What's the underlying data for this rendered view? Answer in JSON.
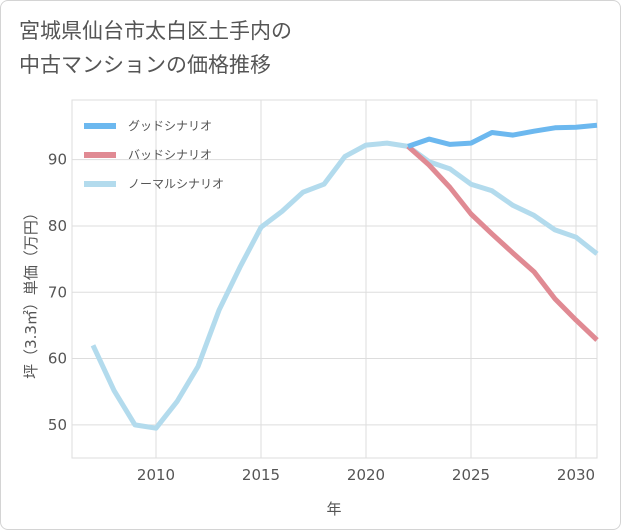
{
  "title_lines": [
    "宮城県仙台市太白区土手内の",
    "中古マンションの価格推移"
  ],
  "chart_data": {
    "type": "line",
    "title": "宮城県仙台市太白区土手内の中古マンションの価格推移",
    "xlabel": "年",
    "ylabel": "坪（3.3㎡）単価（万円）",
    "xlim": [
      2006,
      2031
    ],
    "ylim": [
      45,
      99
    ],
    "xticks": [
      2010,
      2015,
      2020,
      2025,
      2030
    ],
    "yticks": [
      50,
      60,
      70,
      80,
      90
    ],
    "grid": true,
    "legend_position": "top-left",
    "series": [
      {
        "name": "グッドシナリオ",
        "color": "#6cb8ef",
        "x": [
          2022,
          2023,
          2024,
          2025,
          2026,
          2027,
          2028,
          2029,
          2030,
          2031
        ],
        "y": [
          92.0,
          93.1,
          92.3,
          92.5,
          94.1,
          93.7,
          94.3,
          94.8,
          94.9,
          95.2
        ]
      },
      {
        "name": "バッドシナリオ",
        "color": "#e08a93",
        "x": [
          2022,
          2023,
          2024,
          2025,
          2026,
          2027,
          2028,
          2029,
          2030,
          2031
        ],
        "y": [
          92.0,
          89.2,
          85.8,
          81.8,
          78.8,
          75.9,
          73.1,
          69.0,
          65.8,
          62.8
        ]
      },
      {
        "name": "ノーマルシナリオ",
        "color": "#b3dbed",
        "x": [
          2007,
          2008,
          2009,
          2010,
          2011,
          2012,
          2013,
          2014,
          2015,
          2016,
          2017,
          2018,
          2019,
          2020,
          2021,
          2022,
          2023,
          2024,
          2025,
          2026,
          2027,
          2028,
          2029,
          2030,
          2031
        ],
        "y": [
          62.0,
          55.2,
          50.0,
          49.5,
          53.5,
          58.8,
          67.3,
          73.8,
          79.8,
          82.2,
          85.1,
          86.3,
          90.5,
          92.2,
          92.5,
          92.0,
          89.7,
          88.6,
          86.3,
          85.3,
          83.1,
          81.6,
          79.4,
          78.3,
          75.8
        ]
      }
    ]
  }
}
